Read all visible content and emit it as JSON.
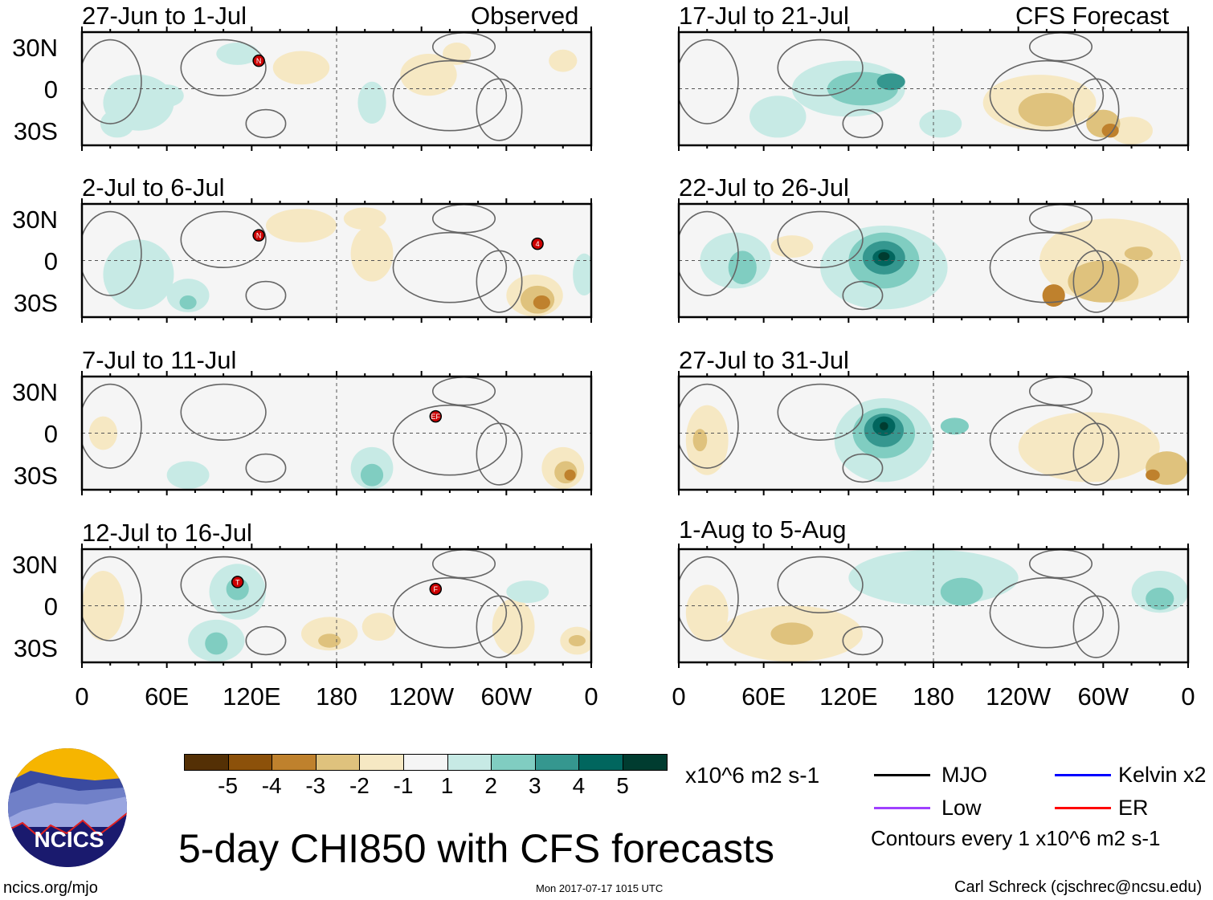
{
  "columns": {
    "left_label": "Observed",
    "right_label": "CFS Forecast"
  },
  "panels": [
    {
      "title": "27-Jun to 1-Jul",
      "storms": [
        {
          "lon": 125,
          "lat": 20,
          "label": "N"
        }
      ],
      "anomalies": [
        [
          40,
          -10,
          25,
          20,
          1
        ],
        [
          25,
          -25,
          12,
          10,
          1
        ],
        [
          60,
          -5,
          12,
          8,
          1
        ],
        [
          110,
          25,
          15,
          8,
          1
        ],
        [
          155,
          15,
          20,
          12,
          -1
        ],
        [
          245,
          10,
          20,
          15,
          -1
        ],
        [
          265,
          25,
          10,
          8,
          -1
        ],
        [
          205,
          -10,
          10,
          15,
          1
        ],
        [
          340,
          20,
          10,
          8,
          -1
        ]
      ]
    },
    {
      "title": "2-Jul to 6-Jul",
      "storms": [
        {
          "lon": 125,
          "lat": 18,
          "label": "N"
        },
        {
          "lon": 322,
          "lat": 12,
          "label": "4"
        }
      ],
      "anomalies": [
        [
          40,
          -10,
          25,
          25,
          1
        ],
        [
          75,
          -25,
          15,
          12,
          1
        ],
        [
          75,
          -30,
          6,
          5,
          2
        ],
        [
          155,
          25,
          25,
          12,
          -1
        ],
        [
          205,
          5,
          15,
          20,
          -1
        ],
        [
          200,
          30,
          15,
          8,
          -1
        ],
        [
          320,
          -25,
          20,
          15,
          -1
        ],
        [
          322,
          -28,
          12,
          10,
          -2
        ],
        [
          325,
          -30,
          6,
          5,
          -3
        ],
        [
          355,
          -10,
          8,
          15,
          1
        ]
      ]
    },
    {
      "title": "7-Jul to 11-Jul",
      "storms": [
        {
          "lon": 250,
          "lat": 12,
          "label": "EF"
        }
      ],
      "anomalies": [
        [
          15,
          0,
          10,
          12,
          -1
        ],
        [
          75,
          -30,
          15,
          10,
          1
        ],
        [
          205,
          -25,
          15,
          15,
          1
        ],
        [
          205,
          -30,
          8,
          8,
          2
        ],
        [
          340,
          -25,
          15,
          15,
          -1
        ],
        [
          342,
          -28,
          8,
          8,
          -2
        ],
        [
          345,
          -30,
          4,
          4,
          -3
        ]
      ]
    },
    {
      "title": "12-Jul to 16-Jul",
      "storms": [
        {
          "lon": 110,
          "lat": 17,
          "label": "T"
        },
        {
          "lon": 250,
          "lat": 12,
          "label": "F"
        }
      ],
      "anomalies": [
        [
          15,
          0,
          15,
          25,
          -1
        ],
        [
          110,
          10,
          20,
          20,
          1
        ],
        [
          110,
          12,
          8,
          8,
          2
        ],
        [
          95,
          -25,
          20,
          15,
          1
        ],
        [
          95,
          -27,
          8,
          8,
          2
        ],
        [
          175,
          -20,
          20,
          12,
          -1
        ],
        [
          175,
          -25,
          8,
          5,
          -2
        ],
        [
          210,
          -15,
          12,
          10,
          -1
        ],
        [
          305,
          -15,
          15,
          20,
          -1
        ],
        [
          350,
          -25,
          12,
          10,
          -1
        ],
        [
          350,
          -25,
          6,
          4,
          -2
        ],
        [
          315,
          10,
          15,
          8,
          1
        ]
      ]
    },
    {
      "title": "17-Jul to 21-Jul",
      "storms": [],
      "anomalies": [
        [
          120,
          0,
          40,
          20,
          1
        ],
        [
          130,
          0,
          25,
          12,
          2
        ],
        [
          150,
          5,
          10,
          6,
          3
        ],
        [
          185,
          -25,
          15,
          10,
          1
        ],
        [
          70,
          -20,
          20,
          15,
          1
        ],
        [
          255,
          -10,
          40,
          20,
          -1
        ],
        [
          260,
          -15,
          20,
          12,
          -2
        ],
        [
          300,
          -25,
          12,
          10,
          -2
        ],
        [
          305,
          -30,
          6,
          5,
          -3
        ],
        [
          320,
          -30,
          15,
          10,
          -1
        ]
      ]
    },
    {
      "title": "22-Jul to 26-Jul",
      "storms": [],
      "anomalies": [
        [
          145,
          -5,
          45,
          30,
          1
        ],
        [
          145,
          0,
          25,
          20,
          2
        ],
        [
          145,
          2,
          15,
          12,
          3
        ],
        [
          145,
          2,
          8,
          6,
          4
        ],
        [
          145,
          3,
          4,
          3,
          5
        ],
        [
          40,
          0,
          25,
          20,
          1
        ],
        [
          45,
          -5,
          10,
          12,
          2
        ],
        [
          80,
          10,
          15,
          8,
          -1
        ],
        [
          305,
          0,
          50,
          30,
          -1
        ],
        [
          300,
          -15,
          25,
          15,
          -2
        ],
        [
          265,
          -25,
          8,
          8,
          -3
        ],
        [
          325,
          5,
          10,
          5,
          -2
        ]
      ]
    },
    {
      "title": "27-Jul to 31-Jul",
      "storms": [],
      "anomalies": [
        [
          145,
          -5,
          35,
          30,
          1
        ],
        [
          145,
          0,
          22,
          18,
          2
        ],
        [
          145,
          2,
          14,
          12,
          3
        ],
        [
          145,
          5,
          8,
          7,
          4
        ],
        [
          145,
          5,
          3,
          3,
          5
        ],
        [
          195,
          5,
          10,
          6,
          2
        ],
        [
          20,
          -5,
          15,
          25,
          -1
        ],
        [
          15,
          -5,
          5,
          8,
          -2
        ],
        [
          290,
          -10,
          50,
          25,
          -1
        ],
        [
          345,
          -25,
          15,
          12,
          -2
        ],
        [
          335,
          -30,
          5,
          4,
          -3
        ]
      ]
    },
    {
      "title": "1-Aug to 5-Aug",
      "storms": [],
      "anomalies": [
        [
          180,
          20,
          60,
          20,
          1
        ],
        [
          200,
          10,
          15,
          10,
          2
        ],
        [
          340,
          10,
          20,
          15,
          1
        ],
        [
          340,
          5,
          10,
          8,
          2
        ],
        [
          80,
          -20,
          50,
          20,
          -1
        ],
        [
          80,
          -20,
          15,
          8,
          -2
        ],
        [
          20,
          -5,
          15,
          20,
          -1
        ]
      ]
    }
  ],
  "lat_labels": [
    "30N",
    "0",
    "30S"
  ],
  "lon_labels": [
    "0",
    "60E",
    "120E",
    "180",
    "120W",
    "60W",
    "0"
  ],
  "colorbar": {
    "colors": [
      "#543005",
      "#8c510a",
      "#bf812d",
      "#dfc27d",
      "#f6e8c3",
      "#f5f5f5",
      "#c7eae5",
      "#80cdc1",
      "#35978f",
      "#01665e",
      "#003c30"
    ],
    "labels": [
      "-5",
      "-4",
      "-3",
      "-2",
      "-1",
      "1",
      "2",
      "3",
      "4",
      "5"
    ],
    "units": "x10^6 m2 s-1"
  },
  "legend": [
    {
      "label": "MJO",
      "color": "#000000"
    },
    {
      "label": "Kelvin x2",
      "color": "#0000ff"
    },
    {
      "label": "Low",
      "color": "#a040ff"
    },
    {
      "label": "ER",
      "color": "#ff0000"
    }
  ],
  "contour_note": "Contours every 1 x10^6 m2 s-1",
  "main_title": "5-day CHI850 with CFS forecasts",
  "logo_text": "NCICS",
  "website": "ncics.org/mjo",
  "timestamp": "Mon 2017-07-17 1015 UTC",
  "credit": "Carl Schreck (cjschrec@ncsu.edu)"
}
